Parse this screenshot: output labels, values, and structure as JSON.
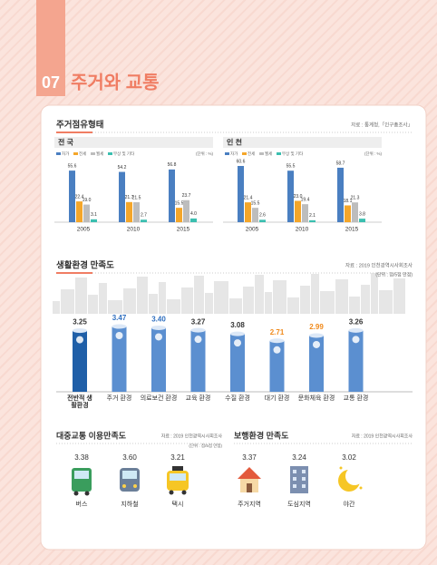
{
  "header": {
    "number": "07",
    "title": "주거와 교통"
  },
  "chart_data": [
    {
      "type": "grouped-bar",
      "title": "주거점유형태",
      "source": "자료 : 통계청,「인구총조사」",
      "subtitle": "전 국",
      "unit": "(단위 : %)",
      "categories": [
        "2005",
        "2010",
        "2015"
      ],
      "series": [
        {
          "name": "자가",
          "color": "#4a7fc1",
          "values": [
            55.6,
            54.2,
            56.8
          ],
          "value_labels": [
            "55.6",
            "54.2",
            "56.8"
          ]
        },
        {
          "name": "전세",
          "color": "#f4a62a",
          "values": [
            22.4,
            21.7,
            15.5
          ],
          "value_labels": [
            "22.4",
            "21.7",
            "15.5"
          ]
        },
        {
          "name": "월세",
          "color": "#bdbdbd",
          "values": [
            19.0,
            21.5,
            23.7
          ],
          "value_labels": [
            "19.0",
            "21.5",
            "23.7"
          ]
        },
        {
          "name": "무상 및 기타",
          "color": "#3bbfb0",
          "values": [
            3.1,
            2.7,
            4.0
          ],
          "value_labels": [
            "3.1",
            "2.7",
            "4.0"
          ]
        }
      ]
    },
    {
      "type": "grouped-bar",
      "subtitle": "인 천",
      "unit": "(단위 : %)",
      "categories": [
        "2005",
        "2010",
        "2015"
      ],
      "series": [
        {
          "name": "자가",
          "color": "#4a7fc1",
          "values": [
            60.6,
            55.5,
            58.7
          ],
          "value_labels": [
            "60.6",
            "55.5",
            "58.7"
          ]
        },
        {
          "name": "전세",
          "color": "#f4a62a",
          "values": [
            21.4,
            23.0,
            18.1
          ],
          "value_labels": [
            "21.4",
            "23.0",
            "18.1"
          ]
        },
        {
          "name": "월세",
          "color": "#bdbdbd",
          "values": [
            15.5,
            19.4,
            21.3
          ],
          "value_labels": [
            "15.5",
            "19.4",
            "21.3"
          ]
        },
        {
          "name": "무상 및 기타",
          "color": "#3bbfb0",
          "values": [
            2.6,
            2.1,
            3.8
          ],
          "value_labels": [
            "2.6",
            "2.1",
            "3.8"
          ]
        }
      ]
    },
    {
      "type": "cylinder-bar",
      "title": "생활환경 만족도",
      "source": "자료 : 2019 인천광역시사회조사",
      "unit": "(단위 : 점/5점 만점)",
      "categories": [
        "전반적 생활환경",
        "주거 환경",
        "의료보건 환경",
        "교육 환경",
        "수질 환경",
        "대기 환경",
        "문화체육 환경",
        "교통 환경"
      ],
      "values": [
        3.25,
        3.47,
        3.4,
        3.27,
        3.08,
        2.71,
        2.99,
        3.26
      ],
      "value_labels": [
        "3.25",
        "3.47",
        "3.40",
        "3.27",
        "3.08",
        "2.71",
        "2.99",
        "3.26"
      ],
      "colors": [
        "#1f5fa8",
        "#5b8fd0",
        "#5b8fd0",
        "#5b8fd0",
        "#5b8fd0",
        "#5b8fd0",
        "#5b8fd0",
        "#5b8fd0"
      ],
      "value_label_colors": [
        "#333333",
        "#2f6fc0",
        "#2f6fc0",
        "#333333",
        "#333333",
        "#f08a1c",
        "#f08a1c",
        "#333333"
      ]
    },
    {
      "type": "pictogram",
      "title": "대중교통 이용만족도",
      "source": "자료 : 2019 인천광역시사회조사",
      "unit": "(단위 : 점/5점 만점)",
      "categories": [
        "버스",
        "지하철",
        "택시"
      ],
      "values": [
        3.38,
        3.6,
        3.21
      ],
      "value_labels": [
        "3.38",
        "3.60",
        "3.21"
      ]
    },
    {
      "type": "pictogram",
      "title": "보행환경 만족도",
      "source": "자료 : 2019 인천광역시사회조사",
      "categories": [
        "주거지역",
        "도심지역",
        "야간"
      ],
      "values": [
        3.37,
        3.24,
        3.02
      ],
      "value_labels": [
        "3.37",
        "3.24",
        "3.02"
      ]
    }
  ]
}
